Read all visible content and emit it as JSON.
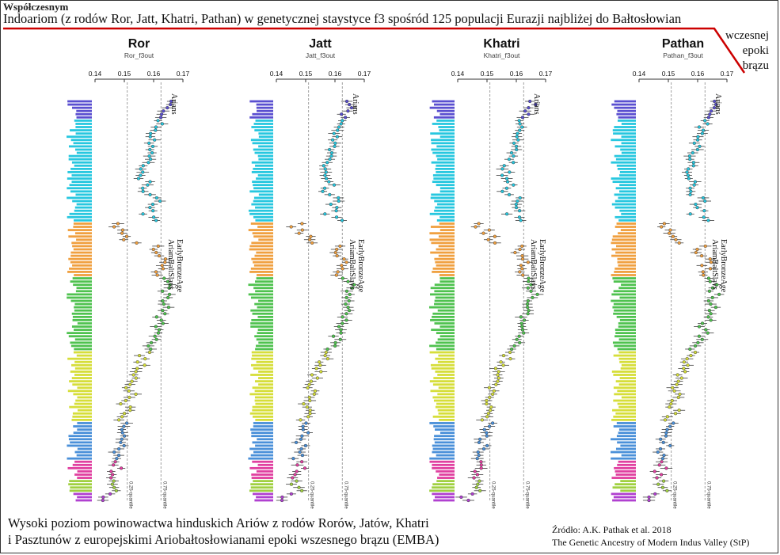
{
  "header": {
    "top_label": "Współczesnym",
    "title": "Indoariom (z rodów Ror, Jatt, Khatri, Pathan) w genetycznej staystyce f3 spośród 125 populacji Eurazji najbliżej do Bałtosłowian",
    "title_continuation": "wczesnej epoki brązu"
  },
  "caption": "Wysoki poziom powinowactwa hinduskich Ariów z rodów Rorów, Jatów, Khatri\ni Pasztunów z europejskimi  Ariobałtosłowianami epoki wszesnego brązu (EMBA)",
  "source": "Źródło: A.K. Pathak et al. 2018\nThe Genetic Ancestry of Modern Indus Valley  (StP)",
  "colors": {
    "title_underline": "#cc0000",
    "aryans": "#5a4fd0",
    "central_asia": "#27c7df",
    "west_asia_caucasus": "#f0a040",
    "europe": "#4fc24f",
    "east_europe": "#d6de3a",
    "siberia": "#4a90d9",
    "east_asia": "#e040a0",
    "se_asia": "#a0d040",
    "oceania": "#b040d0"
  },
  "chart_data": {
    "type": "scatter",
    "panels": [
      {
        "title": "Ror",
        "subtitle": "Ror_f3out"
      },
      {
        "title": "Jatt",
        "subtitle": "Jatt_f3out"
      },
      {
        "title": "Khatri",
        "subtitle": "Khatri_f3out"
      },
      {
        "title": "Pathan",
        "subtitle": "Pathan_f3out"
      }
    ],
    "x_ticks": [
      "0.14",
      "0.15",
      "0.16",
      "0.17"
    ],
    "xlim": [
      0.14,
      0.17
    ],
    "quantile_lines": [
      {
        "label": "0.25-quantile",
        "value": 0.151
      },
      {
        "label": "0.75-quantile",
        "value": 0.1625
      }
    ],
    "annotations": [
      "Arians",
      "EarlyBronzeAge AriamBaltSlavs"
    ],
    "grid": false,
    "population_count": 125,
    "groups": [
      {
        "color_key": "aryans",
        "start": 0,
        "end": 6,
        "values": [
          0.165,
          0.166,
          0.165,
          0.164,
          0.163,
          0.163
        ]
      },
      {
        "color_key": "central_asia",
        "start": 6,
        "end": 38,
        "values": [
          0.162,
          0.162,
          0.161,
          0.161,
          0.16,
          0.16,
          0.16,
          0.159,
          0.16,
          0.159,
          0.159,
          0.158,
          0.158,
          0.158,
          0.157,
          0.156,
          0.157,
          0.156,
          0.156,
          0.158,
          0.159,
          0.157,
          0.156,
          0.158,
          0.162,
          0.161,
          0.159,
          0.16,
          0.161,
          0.157,
          0.161,
          0.162
        ]
      },
      {
        "color_key": "west_asia_caucasus",
        "start": 38,
        "end": 55,
        "values": [
          0.148,
          0.146,
          0.15,
          0.149,
          0.152,
          0.151,
          0.153,
          0.162,
          0.16,
          0.16,
          0.161,
          0.163,
          0.164,
          0.162,
          0.163,
          0.162,
          0.161
        ]
      },
      {
        "color_key": "europe",
        "start": 55,
        "end": 78,
        "values": [
          0.163,
          0.164,
          0.166,
          0.165,
          0.164,
          0.166,
          0.165,
          0.164,
          0.163,
          0.165,
          0.164,
          0.163,
          0.162,
          0.163,
          0.162,
          0.161,
          0.163,
          0.162,
          0.16,
          0.161,
          0.16,
          0.159,
          0.158
        ]
      },
      {
        "color_key": "east_europe",
        "start": 78,
        "end": 100,
        "values": [
          0.158,
          0.156,
          0.157,
          0.155,
          0.156,
          0.154,
          0.155,
          0.153,
          0.154,
          0.153,
          0.152,
          0.151,
          0.152,
          0.153,
          0.152,
          0.151,
          0.15,
          0.151,
          0.152,
          0.151,
          0.15,
          0.149
        ]
      },
      {
        "color_key": "siberia",
        "start": 100,
        "end": 112,
        "values": [
          0.151,
          0.15,
          0.149,
          0.15,
          0.149,
          0.148,
          0.148,
          0.149,
          0.148,
          0.147,
          0.148,
          0.147
        ]
      },
      {
        "color_key": "east_asia",
        "start": 112,
        "end": 118,
        "values": [
          0.148,
          0.147,
          0.149,
          0.146,
          0.147,
          0.146
        ]
      },
      {
        "color_key": "se_asia",
        "start": 118,
        "end": 122,
        "values": [
          0.147,
          0.146,
          0.147,
          0.148
        ]
      },
      {
        "color_key": "oceania",
        "start": 122,
        "end": 125,
        "values": [
          0.145,
          0.142,
          0.143
        ]
      }
    ]
  }
}
